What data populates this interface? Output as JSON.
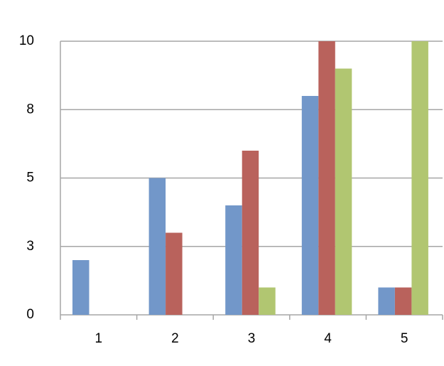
{
  "chart_data": {
    "type": "bar",
    "categories": [
      "1",
      "2",
      "3",
      "4",
      "5"
    ],
    "series": [
      {
        "color": "#7297c9",
        "values": [
          2,
          5,
          4,
          8,
          1
        ]
      },
      {
        "color": "#b9625c",
        "values": [
          0,
          3,
          6,
          10,
          1
        ]
      },
      {
        "color": "#b1c671",
        "values": [
          0,
          0,
          1,
          9,
          10
        ]
      }
    ],
    "ylim": [
      0,
      10
    ],
    "yticks": [
      0,
      {
        "value": 2.5,
        "label": "3"
      },
      5,
      {
        "value": 7.5,
        "label": "8"
      },
      10
    ],
    "grid": true
  }
}
